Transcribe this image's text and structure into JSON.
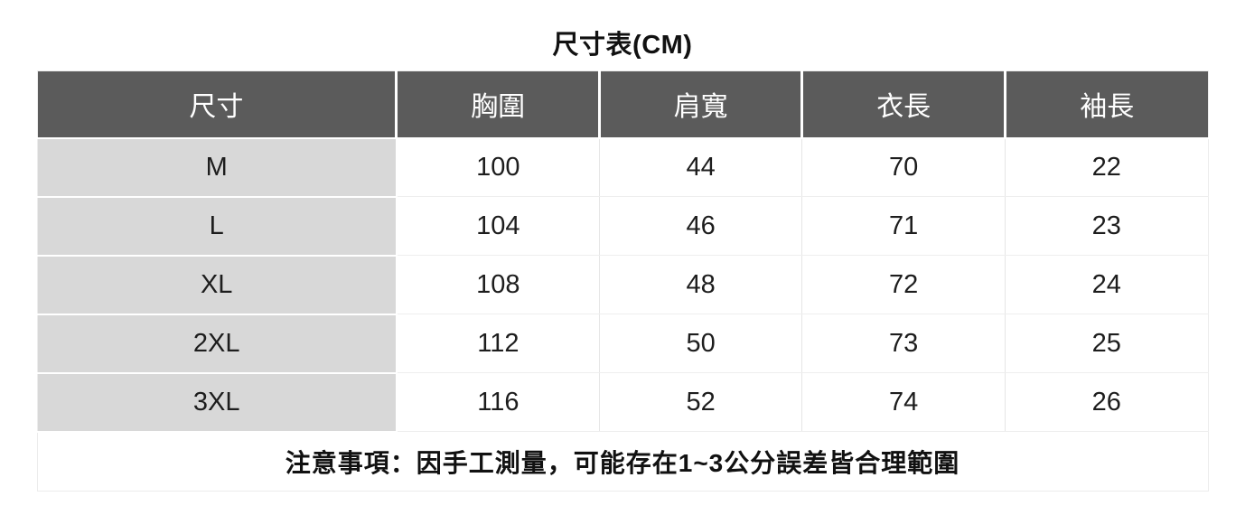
{
  "title": "尺寸表(CM)",
  "table": {
    "columns": [
      "尺寸",
      "胸圍",
      "肩寬",
      "衣長",
      "袖長"
    ],
    "rows": [
      {
        "size": "M",
        "values": [
          "100",
          "44",
          "70",
          "22"
        ]
      },
      {
        "size": "L",
        "values": [
          "104",
          "46",
          "71",
          "23"
        ]
      },
      {
        "size": "XL",
        "values": [
          "108",
          "48",
          "72",
          "24"
        ]
      },
      {
        "size": "2XL",
        "values": [
          "112",
          "50",
          "73",
          "25"
        ]
      },
      {
        "size": "3XL",
        "values": [
          "116",
          "52",
          "74",
          "26"
        ]
      }
    ],
    "note": "注意事項：因手工測量，可能存在1~3公分誤差皆合理範圍"
  },
  "colors": {
    "header_bg": "#5b5b5b",
    "header_text": "#ffffff",
    "size_column_bg": "#d8d8d8",
    "body_text": "#1d1d1d",
    "divider": "#e6e6e6"
  }
}
